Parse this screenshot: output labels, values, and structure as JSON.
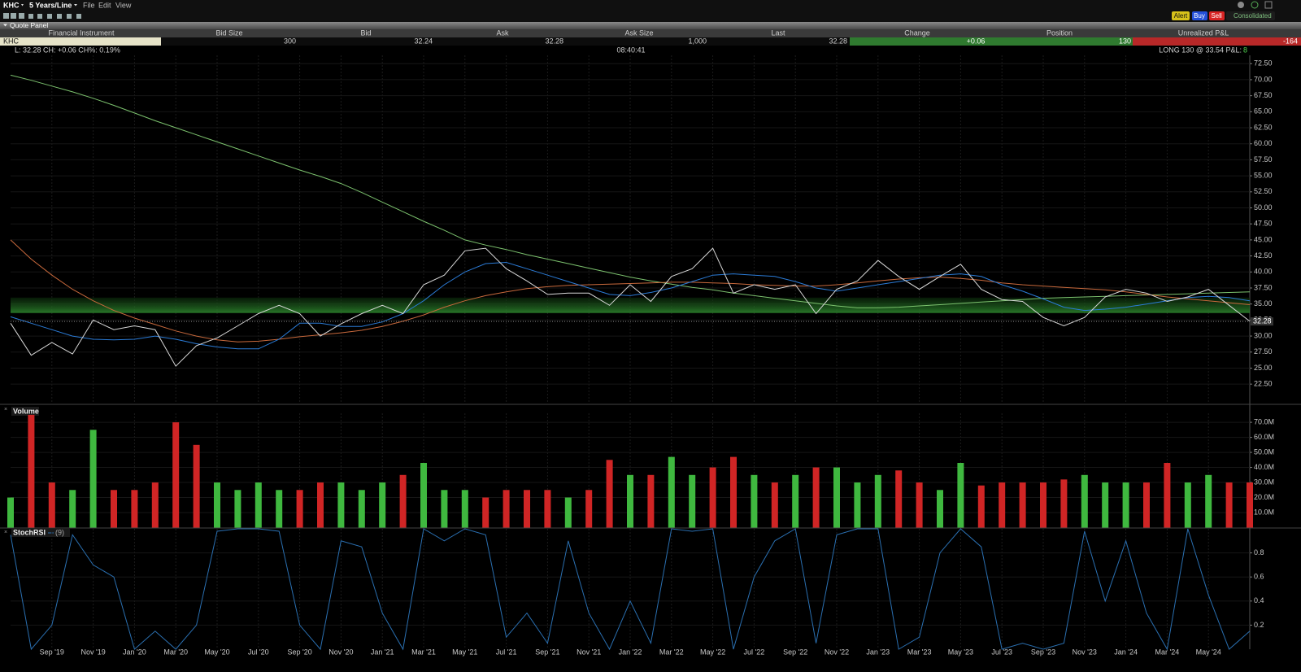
{
  "toolbar": {
    "symbol": "KHC",
    "period": "5 Years/Line",
    "menus": [
      "File",
      "Edit",
      "View"
    ],
    "buttons": [
      "Alert",
      "Buy",
      "Sell"
    ],
    "route": "Consolidated"
  },
  "quote_panel": {
    "title": "Quote Panel",
    "columns": [
      "Financial Instrument",
      "Bid Size",
      "Bid",
      "Ask",
      "Ask Size",
      "Last",
      "Change",
      "Position",
      "Unrealized P&L"
    ],
    "row": [
      "KHC",
      "300",
      "32.24",
      "32.28",
      "1,000",
      "32.28",
      "+0.06",
      "130",
      "-164"
    ]
  },
  "info_bar": {
    "left": "L: 32.28 CH: +0.06 CH%: 0.19%",
    "center": "08:40:41",
    "right": "LONG 130 @ 33.54 P&L:",
    "pnl": "8"
  },
  "chart_data": [
    {
      "type": "line",
      "x": [
        "2019-07",
        "2019-08",
        "2019-09",
        "2019-10",
        "2019-11",
        "2019-12",
        "2020-01",
        "2020-02",
        "2020-03",
        "2020-04",
        "2020-05",
        "2020-06",
        "2020-07",
        "2020-08",
        "2020-09",
        "2020-10",
        "2020-11",
        "2020-12",
        "2021-01",
        "2021-02",
        "2021-03",
        "2021-04",
        "2021-05",
        "2021-06",
        "2021-07",
        "2021-08",
        "2021-09",
        "2021-10",
        "2021-11",
        "2021-12",
        "2022-01",
        "2022-02",
        "2022-03",
        "2022-04",
        "2022-05",
        "2022-06",
        "2022-07",
        "2022-08",
        "2022-09",
        "2022-10",
        "2022-11",
        "2022-12",
        "2023-01",
        "2023-02",
        "2023-03",
        "2023-04",
        "2023-05",
        "2023-06",
        "2023-07",
        "2023-08",
        "2023-09",
        "2023-10",
        "2023-11",
        "2023-12",
        "2024-01",
        "2024-02",
        "2024-03",
        "2024-04",
        "2024-05",
        "2024-06",
        "2024-07"
      ],
      "xlim": [
        "2019-07",
        "2024-07"
      ],
      "series": [
        {
          "color": "#7cc26e",
          "values": [
            70.7,
            69.9,
            69.0,
            68.1,
            67.1,
            66.0,
            64.8,
            63.6,
            62.5,
            61.4,
            60.3,
            59.2,
            58.1,
            57.0,
            55.9,
            54.9,
            53.8,
            52.4,
            50.9,
            49.4,
            47.9,
            46.5,
            45.0,
            44.2,
            43.5,
            42.7,
            42.0,
            41.3,
            40.6,
            39.9,
            39.2,
            38.6,
            38.1,
            37.6,
            37.2,
            36.7,
            36.3,
            35.9,
            35.5,
            35.1,
            34.7,
            34.4,
            34.4,
            34.5,
            34.7,
            34.9,
            35.1,
            35.3,
            35.5,
            35.7,
            35.9,
            36.0,
            36.1,
            36.2,
            36.3,
            36.4,
            36.5,
            36.6,
            36.7,
            36.8,
            36.9
          ]
        },
        {
          "color": "#c8693c",
          "values": [
            45.0,
            42.0,
            39.5,
            37.3,
            35.5,
            34.0,
            32.8,
            31.8,
            30.8,
            30.0,
            29.4,
            29.1,
            29.2,
            29.5,
            29.9,
            30.2,
            30.5,
            30.9,
            31.5,
            32.3,
            33.3,
            34.5,
            35.5,
            36.3,
            36.9,
            37.4,
            37.7,
            37.9,
            38.0,
            38.1,
            38.2,
            38.3,
            38.4,
            38.4,
            38.3,
            38.2,
            38.0,
            37.9,
            37.8,
            37.8,
            38.0,
            38.3,
            38.6,
            38.9,
            39.1,
            39.2,
            39.0,
            38.7,
            38.3,
            38.0,
            37.8,
            37.6,
            37.4,
            37.2,
            36.9,
            36.5,
            36.1,
            35.8,
            35.5,
            35.2,
            34.9
          ]
        },
        {
          "color": "#2b7bd6",
          "values": [
            33.0,
            32.0,
            31.0,
            30.0,
            29.5,
            29.4,
            29.5,
            30.0,
            29.5,
            28.8,
            28.3,
            28.0,
            28.0,
            29.5,
            32.0,
            32.0,
            31.5,
            31.5,
            32.2,
            33.5,
            35.5,
            38.0,
            40.0,
            41.3,
            41.5,
            40.5,
            39.5,
            38.5,
            37.5,
            36.5,
            36.3,
            36.8,
            37.5,
            38.5,
            39.5,
            39.7,
            39.5,
            39.3,
            38.5,
            37.5,
            37.0,
            37.5,
            38.0,
            38.5,
            39.0,
            39.5,
            39.7,
            39.3,
            38.0,
            37.0,
            35.8,
            34.5,
            34.0,
            34.2,
            34.5,
            35.0,
            35.5,
            36.0,
            36.2,
            36.0,
            35.5
          ]
        },
        {
          "color": "#d8d8d8",
          "values": [
            32.0,
            27.0,
            29.0,
            27.2,
            32.5,
            31.0,
            31.6,
            31.0,
            25.3,
            28.5,
            29.7,
            31.6,
            33.5,
            34.8,
            33.5,
            30.0,
            31.9,
            33.5,
            34.8,
            33.5,
            38.0,
            39.5,
            43.3,
            43.7,
            40.5,
            38.6,
            36.5,
            36.7,
            36.7,
            34.8,
            38.0,
            35.4,
            39.3,
            40.5,
            43.7,
            36.7,
            38.0,
            37.3,
            38.0,
            33.5,
            37.3,
            38.6,
            41.8,
            39.3,
            37.3,
            39.3,
            41.2,
            37.3,
            35.7,
            35.4,
            32.9,
            31.6,
            32.9,
            36.1,
            37.3,
            36.7,
            35.4,
            36.1,
            37.3,
            34.8,
            32.3
          ]
        }
      ],
      "highlight_band": [
        33.6,
        36.0
      ],
      "last_price": 32.28,
      "ylim": [
        19.6,
        73.8
      ],
      "yticks": [
        {
          "value": 22.5,
          "label": "22.50"
        },
        {
          "value": 25,
          "label": "25.00"
        },
        {
          "value": 27.5,
          "label": "27.50"
        },
        {
          "value": 30,
          "label": "30.00"
        },
        {
          "value": 32.5,
          "label": "32.50"
        },
        {
          "value": 35,
          "label": "35.00"
        },
        {
          "value": 37.5,
          "label": "37.50"
        },
        {
          "value": 40,
          "label": "40.00"
        },
        {
          "value": 42.5,
          "label": "42.50"
        },
        {
          "value": 45,
          "label": "45.00"
        },
        {
          "value": 47.5,
          "label": "47.50"
        },
        {
          "value": 50,
          "label": "50.00"
        },
        {
          "value": 52.5,
          "label": "52.50"
        },
        {
          "value": 55,
          "label": "55.00"
        },
        {
          "value": 57.5,
          "label": "57.50"
        },
        {
          "value": 60,
          "label": "60.00"
        },
        {
          "value": 62.5,
          "label": "62.50"
        },
        {
          "value": 65,
          "label": "65.00"
        },
        {
          "value": 67.5,
          "label": "67.50"
        },
        {
          "value": 70,
          "label": "70.00"
        },
        {
          "value": 72.5,
          "label": "72.50"
        }
      ]
    },
    {
      "type": "bar",
      "title": "Volume",
      "values": [
        20000000,
        75000000,
        30000000,
        25000000,
        65000000,
        25000000,
        25000000,
        30000000,
        70000000,
        55000000,
        30000000,
        25000000,
        30000000,
        25000000,
        25000000,
        30000000,
        30000000,
        25000000,
        30000000,
        35000000,
        43000000,
        25000000,
        25000000,
        20000000,
        25000000,
        25000000,
        25000000,
        20000000,
        25000000,
        45000000,
        35000000,
        35000000,
        47000000,
        35000000,
        40000000,
        47000000,
        35000000,
        30000000,
        35000000,
        40000000,
        40000000,
        30000000,
        35000000,
        38000000,
        30000000,
        25000000,
        43000000,
        28000000,
        30000000,
        30000000,
        30000000,
        32000000,
        35000000,
        30000000,
        30000000,
        30000000,
        43000000,
        30000000,
        35000000,
        30000000,
        30000000
      ],
      "bar_colors": [
        "#3fb83f",
        "#d02525",
        "#d02525",
        "#3fb83f",
        "#3fb83f",
        "#d02525",
        "#d02525",
        "#d02525",
        "#d02525",
        "#d02525",
        "#3fb83f",
        "#3fb83f",
        "#3fb83f",
        "#3fb83f",
        "#d02525",
        "#d02525",
        "#3fb83f",
        "#3fb83f",
        "#3fb83f",
        "#d02525",
        "#3fb83f",
        "#3fb83f",
        "#3fb83f",
        "#d02525",
        "#d02525",
        "#d02525",
        "#d02525",
        "#3fb83f",
        "#d02525",
        "#d02525",
        "#3fb83f",
        "#d02525",
        "#3fb83f",
        "#3fb83f",
        "#d02525",
        "#d02525",
        "#3fb83f",
        "#d02525",
        "#3fb83f",
        "#d02525",
        "#3fb83f",
        "#3fb83f",
        "#3fb83f",
        "#d02525",
        "#d02525",
        "#3fb83f",
        "#3fb83f",
        "#d02525",
        "#d02525",
        "#d02525",
        "#d02525",
        "#d02525",
        "#3fb83f",
        "#3fb83f",
        "#3fb83f",
        "#d02525",
        "#d02525",
        "#3fb83f",
        "#3fb83f",
        "#d02525",
        "#d02525"
      ],
      "ylim": [
        0,
        76000000
      ],
      "yticks": [
        {
          "value": 10000000,
          "label": "10.0M"
        },
        {
          "value": 20000000,
          "label": "20.0M"
        },
        {
          "value": 30000000,
          "label": "30.0M"
        },
        {
          "value": 40000000,
          "label": "40.0M"
        },
        {
          "value": 50000000,
          "label": "50.0M"
        },
        {
          "value": 60000000,
          "label": "60.0M"
        },
        {
          "value": 70000000,
          "label": "70.0M"
        }
      ]
    },
    {
      "type": "line",
      "title": "StochRSI",
      "subtitle": "(9)",
      "color": "#2a6fb0",
      "values": [
        0.95,
        0.0,
        0.2,
        0.95,
        0.7,
        0.6,
        0.0,
        0.15,
        0.0,
        0.2,
        0.98,
        1.0,
        1.0,
        0.98,
        0.2,
        0.0,
        0.9,
        0.85,
        0.3,
        0.0,
        1.0,
        0.9,
        1.0,
        0.95,
        0.1,
        0.3,
        0.05,
        0.9,
        0.3,
        0.0,
        0.4,
        0.05,
        1.0,
        0.98,
        1.0,
        0.0,
        0.6,
        0.9,
        1.0,
        0.05,
        0.95,
        1.0,
        1.0,
        0.0,
        0.1,
        0.8,
        1.0,
        0.85,
        0.0,
        0.05,
        0.0,
        0.05,
        0.98,
        0.4,
        0.9,
        0.3,
        0.0,
        1.0,
        0.45,
        0.0,
        0.15
      ],
      "ylim": [
        0,
        1
      ],
      "yticks": [
        0.2,
        0.4,
        0.6,
        0.8
      ],
      "xticks": [
        {
          "value": "2019-09",
          "label": "Sep '19"
        },
        {
          "value": "2019-11",
          "label": "Nov '19"
        },
        {
          "value": "2020-01",
          "label": "Jan '20"
        },
        {
          "value": "2020-03",
          "label": "Mar '20"
        },
        {
          "value": "2020-05",
          "label": "May '20"
        },
        {
          "value": "2020-07",
          "label": "Jul '20"
        },
        {
          "value": "2020-09",
          "label": "Sep '20"
        },
        {
          "value": "2020-11",
          "label": "Nov '20"
        },
        {
          "value": "2021-01",
          "label": "Jan '21"
        },
        {
          "value": "2021-03",
          "label": "Mar '21"
        },
        {
          "value": "2021-05",
          "label": "May '21"
        },
        {
          "value": "2021-07",
          "label": "Jul '21"
        },
        {
          "value": "2021-09",
          "label": "Sep '21"
        },
        {
          "value": "2021-11",
          "label": "Nov '21"
        },
        {
          "value": "2022-01",
          "label": "Jan '22"
        },
        {
          "value": "2022-03",
          "label": "Mar '22"
        },
        {
          "value": "2022-05",
          "label": "May '22"
        },
        {
          "value": "2022-07",
          "label": "Jul '22"
        },
        {
          "value": "2022-09",
          "label": "Sep '22"
        },
        {
          "value": "2022-11",
          "label": "Nov '22"
        },
        {
          "value": "2023-01",
          "label": "Jan '23"
        },
        {
          "value": "2023-03",
          "label": "Mar '23"
        },
        {
          "value": "2023-05",
          "label": "May '23"
        },
        {
          "value": "2023-07",
          "label": "Jul '23"
        },
        {
          "value": "2023-09",
          "label": "Sep '23"
        },
        {
          "value": "2023-11",
          "label": "Nov '23"
        },
        {
          "value": "2024-01",
          "label": "Jan '24"
        },
        {
          "value": "2024-03",
          "label": "Mar '24"
        },
        {
          "value": "2024-05",
          "label": "May '24"
        }
      ]
    }
  ]
}
